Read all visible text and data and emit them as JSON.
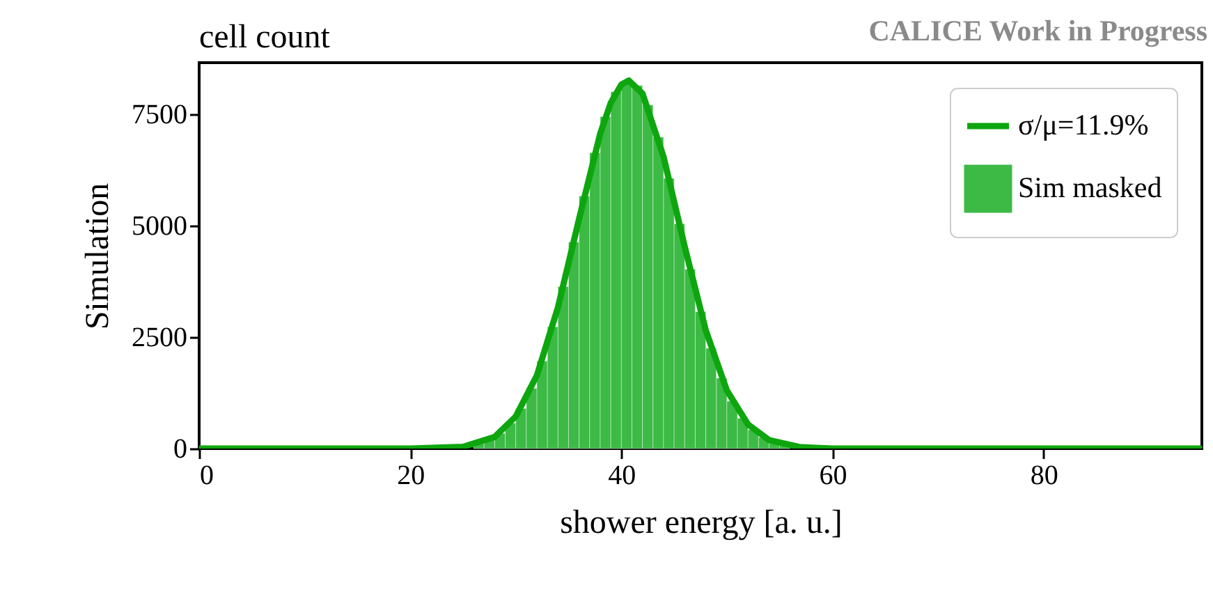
{
  "chart_data": {
    "type": "histogram",
    "title": "cell count",
    "xlabel": "shower energy [a. u.]",
    "ylabel": "Simulation",
    "annotations": [
      "CALICE Work in Progress"
    ],
    "xlim": [
      0,
      95
    ],
    "xticks": [
      0,
      20,
      40,
      60,
      80
    ],
    "ylim": [
      0,
      8650
    ],
    "yticks": [
      0,
      2500,
      5000,
      7500
    ],
    "legend": "top right",
    "grid": false,
    "series": [
      {
        "type": "line",
        "name": "σ/μ=11.9%",
        "color": "#0ea60e",
        "x": [
          0,
          20,
          25,
          28,
          30,
          32,
          34,
          36,
          38,
          39,
          40,
          40.7,
          42,
          44,
          46,
          48,
          50,
          52,
          54,
          57,
          60,
          80,
          95
        ],
        "values": [
          0,
          0,
          40,
          260,
          720,
          1640,
          3170,
          5150,
          7060,
          7750,
          8160,
          8250,
          7960,
          6540,
          4530,
          2650,
          1300,
          540,
          190,
          30,
          0,
          0,
          0
        ]
      },
      {
        "name": "Sim masked",
        "color": "#3cba45",
        "bins": [
          26,
          27,
          28,
          29,
          30,
          31,
          32,
          33,
          34,
          35,
          36,
          37,
          38,
          39,
          40,
          41,
          42,
          43,
          44,
          45,
          46,
          47,
          48,
          49,
          50,
          51,
          52,
          53,
          54,
          55,
          56,
          57
        ],
        "values": [
          110,
          200,
          340,
          570,
          900,
          1350,
          1960,
          2730,
          3630,
          4630,
          5660,
          6630,
          7440,
          8000,
          8240,
          8140,
          7700,
          6980,
          6060,
          5040,
          4020,
          3070,
          2250,
          1580,
          1060,
          680,
          420,
          250,
          140,
          80,
          null
        ]
      }
    ]
  }
}
